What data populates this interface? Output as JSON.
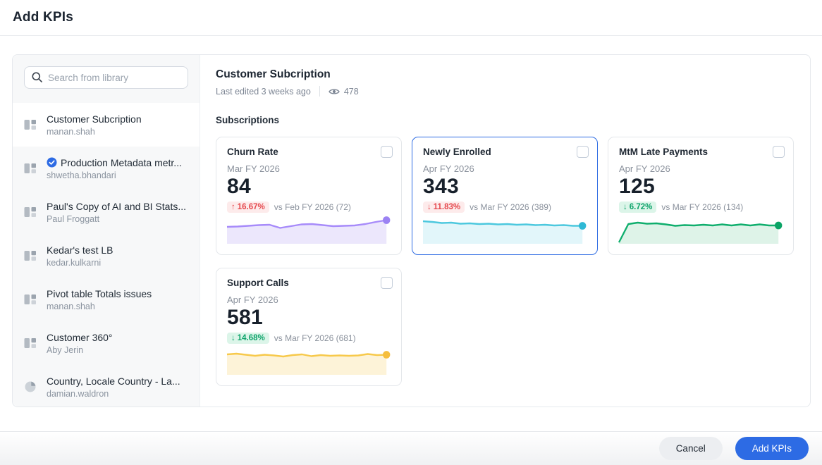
{
  "page": {
    "title": "Add KPIs"
  },
  "sidebar": {
    "search_placeholder": "Search from library",
    "items": [
      {
        "title": "Customer Subcription",
        "owner": "manan.shah",
        "icon": "dashboard",
        "verified": false,
        "selected": true
      },
      {
        "title": "Production Metadata metr...",
        "owner": "shwetha.bhandari",
        "icon": "dashboard",
        "verified": true,
        "selected": false
      },
      {
        "title": "Paul's Copy of AI and BI Stats...",
        "owner": "Paul Froggatt",
        "icon": "dashboard",
        "verified": false,
        "selected": false
      },
      {
        "title": "Kedar's test LB",
        "owner": "kedar.kulkarni",
        "icon": "dashboard",
        "verified": false,
        "selected": false
      },
      {
        "title": "Pivot table Totals issues",
        "owner": "manan.shah",
        "icon": "dashboard",
        "verified": false,
        "selected": false
      },
      {
        "title": "Customer 360°",
        "owner": "Aby Jerin",
        "icon": "dashboard",
        "verified": false,
        "selected": false
      },
      {
        "title": "Country, Locale Country - La...",
        "owner": "damian.waldron",
        "icon": "pie",
        "verified": false,
        "selected": false
      }
    ]
  },
  "main": {
    "title": "Customer Subcription",
    "last_edited": "Last edited 3 weeks ago",
    "views": "478",
    "section": "Subscriptions",
    "cards": [
      {
        "title": "Churn Rate",
        "period": "Mar FY 2026",
        "value": "84",
        "delta_arrow": "↑",
        "delta": "16.67%",
        "delta_sentiment": "negative",
        "comparison": "vs Feb FY 2026 (72)",
        "selected": false,
        "checked": false
      },
      {
        "title": "Newly Enrolled",
        "period": "Apr FY 2026",
        "value": "343",
        "delta_arrow": "↓",
        "delta": "11.83%",
        "delta_sentiment": "negative",
        "comparison": "vs Mar FY 2026 (389)",
        "selected": true,
        "checked": false
      },
      {
        "title": "MtM Late Payments",
        "period": "Apr FY 2026",
        "value": "125",
        "delta_arrow": "↓",
        "delta": "6.72%",
        "delta_sentiment": "positive",
        "comparison": "vs Mar FY 2026 (134)",
        "selected": false,
        "checked": false
      },
      {
        "title": "Support Calls",
        "period": "Apr FY 2026",
        "value": "581",
        "delta_arrow": "↓",
        "delta": "14.68%",
        "delta_sentiment": "positive",
        "comparison": "vs Mar FY 2026 (681)",
        "selected": false,
        "checked": false
      }
    ]
  },
  "footer": {
    "cancel_label": "Cancel",
    "submit_label": "Add KPIs"
  },
  "colors": {
    "accent_blue": "#2d6be4",
    "badge_negative_text": "#e5484d",
    "badge_negative_bg": "#fdebeb",
    "badge_positive_text": "#0da36a",
    "badge_positive_bg": "#dcf5e9"
  },
  "chart_data": [
    {
      "type": "area",
      "name": "Churn Rate trend",
      "color": "#a78bfa",
      "fill": "#ece7fc",
      "dot_color": "#9b82f3",
      "values": [
        26,
        26.5,
        27.5,
        28.5,
        29,
        24.5,
        27,
        29.5,
        30,
        28.5,
        27,
        27.5,
        28,
        30,
        33,
        35.5
      ]
    },
    {
      "type": "area",
      "name": "Newly Enrolled trend",
      "color": "#4cc8de",
      "fill": "#e2f6fa",
      "dot_color": "#2fb9d5",
      "values": [
        34,
        33,
        31.5,
        32,
        30.5,
        31,
        30,
        30.5,
        29.5,
        30,
        29,
        29.5,
        28.5,
        29,
        28,
        28.5,
        27.5,
        27.5
      ]
    },
    {
      "type": "area",
      "name": "MtM Late Payments trend",
      "color": "#0fae6d",
      "fill": "#def3e8",
      "dot_color": "#0aa365",
      "values": [
        4,
        30,
        32,
        30.5,
        31,
        29.5,
        27.5,
        28.5,
        28,
        29,
        28,
        29.5,
        28,
        29.5,
        28,
        29.5,
        28,
        28
      ]
    },
    {
      "type": "area",
      "name": "Support Calls trend",
      "color": "#f7c94b",
      "fill": "#fdf3d8",
      "dot_color": "#f5be3d",
      "values": [
        31,
        32,
        30.5,
        29,
        30.5,
        29.5,
        28,
        30,
        31,
        28.5,
        30,
        29,
        29.5,
        29,
        29.5,
        31.5,
        30,
        30.5
      ]
    }
  ]
}
